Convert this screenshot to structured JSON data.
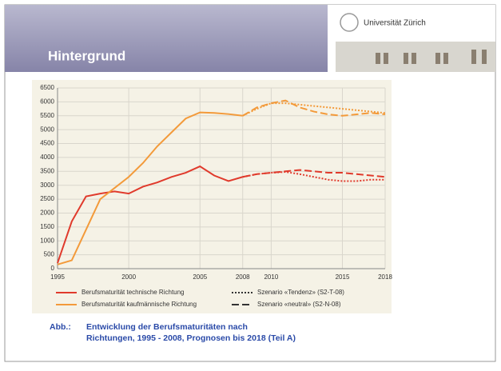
{
  "header": {
    "title": "Hintergrund",
    "logo": "Universität Zürich"
  },
  "chart_data": {
    "type": "line",
    "x": [
      1995,
      1996,
      1997,
      1998,
      1999,
      2000,
      2001,
      2002,
      2003,
      2004,
      2005,
      2006,
      2007,
      2008,
      2009,
      2010,
      2011,
      2012,
      2013,
      2014,
      2015,
      2016,
      2017,
      2018
    ],
    "xlim": [
      1995,
      2018
    ],
    "xticks": [
      1995,
      2000,
      2005,
      2008,
      2010,
      2015,
      2018
    ],
    "ylim": [
      0,
      6500
    ],
    "yticks": [
      0,
      500,
      1000,
      1500,
      2000,
      2500,
      3000,
      3500,
      4000,
      4500,
      5000,
      5500,
      6000,
      6500
    ],
    "grid": true,
    "series": [
      {
        "name": "Berufsmaturität technische Richtung",
        "color": "#e03a2c",
        "dash": "solid",
        "values": [
          200,
          1700,
          2600,
          2700,
          2780,
          2700,
          2950,
          3100,
          3300,
          3450,
          3680,
          3350,
          3150,
          3300,
          null,
          null,
          null,
          null,
          null,
          null,
          null,
          null,
          null,
          null
        ]
      },
      {
        "name": "Berufsmaturität kaufmännische Richtung",
        "color": "#f39a3a",
        "dash": "solid",
        "values": [
          150,
          300,
          1400,
          2500,
          2900,
          3300,
          3800,
          4400,
          4900,
          5400,
          5620,
          5600,
          5560,
          5500,
          null,
          null,
          null,
          null,
          null,
          null,
          null,
          null,
          null,
          null
        ]
      },
      {
        "name": "Szenario «Tendenz» (S2-T-08)",
        "color": "#e03a2c",
        "legend_color": "#333333",
        "dash": "dotted",
        "values": [
          null,
          null,
          null,
          null,
          null,
          null,
          null,
          null,
          null,
          null,
          null,
          null,
          null,
          3300,
          3400,
          3450,
          3480,
          3400,
          3300,
          3200,
          3150,
          3150,
          3200,
          3200
        ]
      },
      {
        "color": "#f39a3a",
        "dash": "dotted",
        "values": [
          null,
          null,
          null,
          null,
          null,
          null,
          null,
          null,
          null,
          null,
          null,
          null,
          null,
          5500,
          5750,
          5950,
          5950,
          5900,
          5850,
          5800,
          5750,
          5700,
          5650,
          5600
        ]
      },
      {
        "name": "Szenario «neutral» (S2-N-08)",
        "color": "#e03a2c",
        "legend_color": "#333333",
        "dash": "dashed",
        "values": [
          null,
          null,
          null,
          null,
          null,
          null,
          null,
          null,
          null,
          null,
          null,
          null,
          null,
          3300,
          3400,
          3450,
          3500,
          3550,
          3500,
          3450,
          3450,
          3400,
          3350,
          3300
        ]
      },
      {
        "color": "#f39a3a",
        "dash": "dashed",
        "values": [
          null,
          null,
          null,
          null,
          null,
          null,
          null,
          null,
          null,
          null,
          null,
          null,
          null,
          5500,
          5800,
          5950,
          6050,
          5800,
          5650,
          5550,
          5500,
          5550,
          5600,
          5550
        ]
      }
    ]
  },
  "caption": {
    "label": "Abb.:",
    "lines": [
      "Entwicklung der Berufsmaturitäten nach",
      "Richtungen, 1995 - 2008, Prognosen bis 2018 (Teil A)"
    ]
  }
}
